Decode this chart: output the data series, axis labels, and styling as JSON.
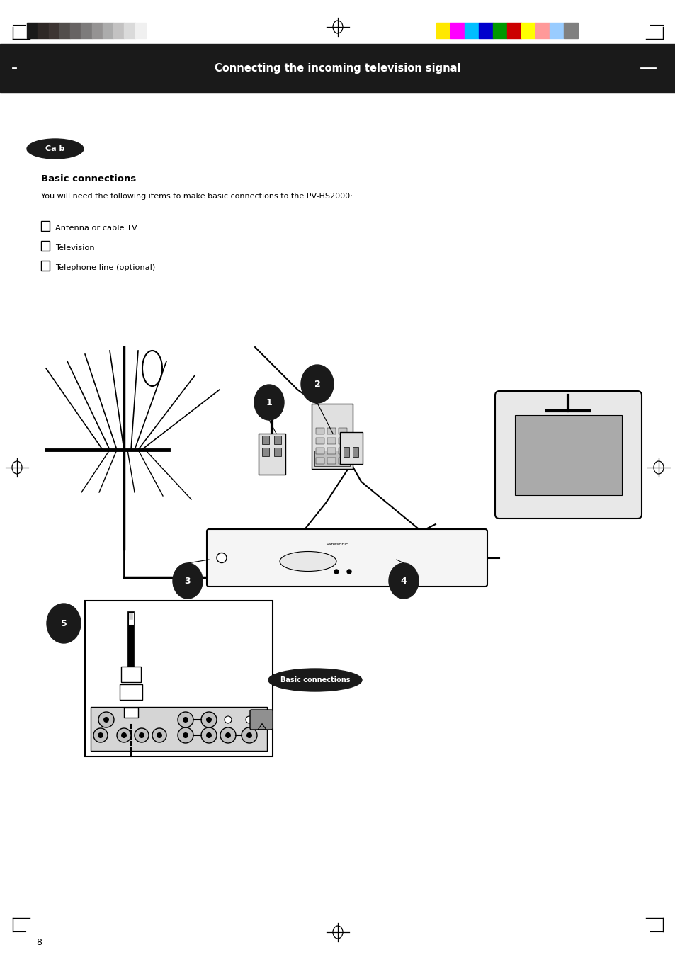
{
  "bg_color": "#ffffff",
  "header_bar_color": "#1a1a1a",
  "header_text_color": "#ffffff",
  "header_text": "Connecting the incoming television signal",
  "page_width": 9.54,
  "page_height": 13.51,
  "color_bar_grayscale": [
    "#1a1a1a",
    "#2e2826",
    "#3d3533",
    "#524e4c",
    "#676363",
    "#7d7b7b",
    "#959393",
    "#acacac",
    "#c3c2c2",
    "#dadada",
    "#f0f0f0"
  ],
  "color_bar_colors": [
    "#FFE800",
    "#FF00FF",
    "#00BFFF",
    "#0000CD",
    "#009900",
    "#CC0000",
    "#FFFF00",
    "#FF9999",
    "#99CCFF",
    "#808080"
  ],
  "bullet_items": [
    "Antenna or cable TV",
    "Television",
    "Telephone line (optional)"
  ]
}
